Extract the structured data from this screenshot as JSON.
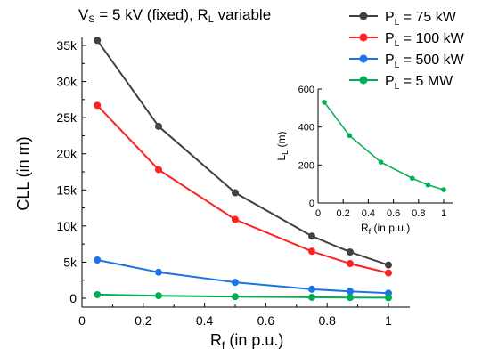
{
  "chart_data": [
    {
      "type": "line",
      "title_main": "V",
      "title_sub": "S",
      "title_mid": " = 5 kV (fixed), R",
      "title_sub2": "L",
      "title_end": " variable",
      "xlabel_main": "R",
      "xlabel_sub": "f",
      "xlabel_end": " (in p.u.)",
      "ylabel": "CLL (in m)",
      "xlim": [
        0,
        1.05
      ],
      "ylim": [
        -1500,
        37000
      ],
      "x_ticks": [
        0,
        0.2,
        0.4,
        0.6,
        0.8,
        1
      ],
      "x_tick_labels": [
        "0",
        "0.2",
        "0.4",
        "0.6",
        "0.8",
        "1"
      ],
      "y_ticks": [
        0,
        5000,
        10000,
        15000,
        20000,
        25000,
        30000,
        35000
      ],
      "y_tick_labels": [
        "0",
        "5k",
        "10k",
        "15k",
        "20k",
        "25k",
        "30k",
        "35k"
      ],
      "x": [
        0.05,
        0.25,
        0.5,
        0.75,
        0.875,
        1
      ],
      "series": [
        {
          "name_main": "P",
          "name_sub": "L",
          "name_end": " = 75 kW",
          "color": "#404040",
          "values": [
            35700,
            23800,
            14600,
            8600,
            6400,
            4600
          ]
        },
        {
          "name_main": "P",
          "name_sub": "L",
          "name_end": " = 100 kW",
          "color": "#ff2020",
          "values": [
            26700,
            17800,
            10900,
            6500,
            4800,
            3500
          ]
        },
        {
          "name_main": "P",
          "name_sub": "L",
          "name_end": " = 500 kW",
          "color": "#1a73e8",
          "values": [
            5300,
            3600,
            2200,
            1250,
            950,
            700
          ]
        },
        {
          "name_main": "P",
          "name_sub": "L",
          "name_end": " = 5 MW",
          "color": "#00b050",
          "values": [
            500,
            350,
            220,
            130,
            95,
            70
          ]
        }
      ],
      "legend": "top-right"
    },
    {
      "type": "line",
      "inset": true,
      "xlabel_main": "R",
      "xlabel_sub": "f",
      "xlabel_end": " (in p.u.)",
      "ylabel_main": "L",
      "ylabel_sub": "L",
      "ylabel_end": " (m)",
      "xlim": [
        0,
        1.05
      ],
      "ylim": [
        0,
        600
      ],
      "x_ticks": [
        0,
        0.2,
        0.4,
        0.6,
        0.8,
        1
      ],
      "x_tick_labels": [
        "0",
        "0.2",
        "0.4",
        "0.6",
        "0.8",
        "1"
      ],
      "y_ticks": [
        0,
        200,
        400,
        600
      ],
      "y_tick_labels": [
        "0",
        "200",
        "400",
        "600"
      ],
      "x": [
        0.05,
        0.25,
        0.5,
        0.75,
        0.875,
        1
      ],
      "series": [
        {
          "color": "#00b050",
          "values": [
            530,
            355,
            215,
            130,
            95,
            70
          ]
        }
      ]
    }
  ]
}
